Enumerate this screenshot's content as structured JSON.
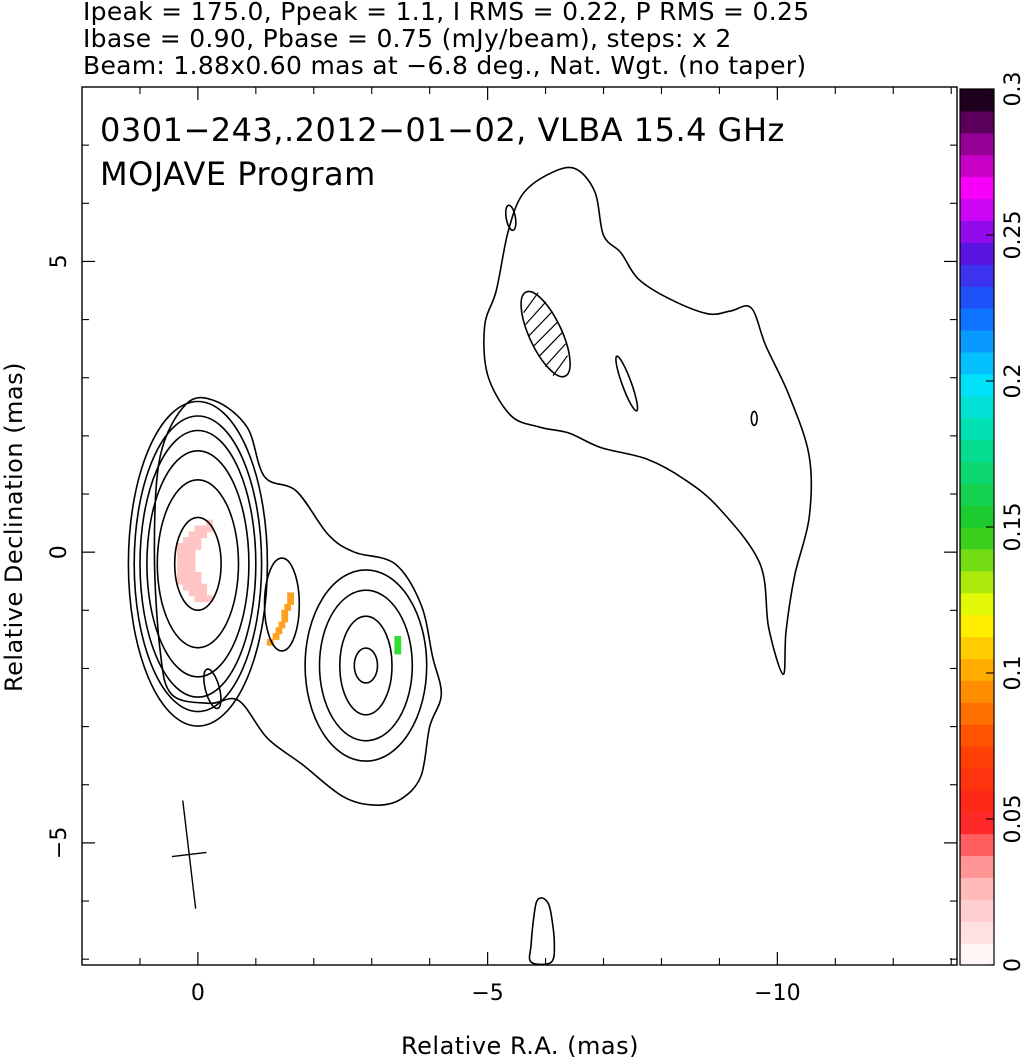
{
  "header": {
    "line1": "Ipeak = 175.0, Ppeak = 1.1, I RMS = 0.22, P RMS = 0.25",
    "line2": "Ibase = 0.90, Pbase = 0.75 (mJy/beam), steps: x 2",
    "line3": "Beam: 1.88x0.60 mas at −6.8 deg., Nat. Wgt. (no taper)"
  },
  "annotation": {
    "line1": "0301−243,.2012−01−02, VLBA 15.4 GHz",
    "line2": "MOJAVE Program"
  },
  "chart_data": {
    "type": "contour",
    "title": "0301−243,.2012−01−02, VLBA 15.4 GHz",
    "subtitle": "MOJAVE Program",
    "xlabel": "Relative R.A. (mas)",
    "ylabel": "Relative Declination (mas)",
    "xlim": [
      2.0,
      -13.1
    ],
    "ylim": [
      -7.1,
      8.0
    ],
    "x_ticks": [
      {
        "value": 0,
        "label": "0"
      },
      {
        "value": -5,
        "label": "−5"
      },
      {
        "value": -10,
        "label": "−10"
      }
    ],
    "x_minor": [
      1,
      -1,
      -2,
      -3,
      -4,
      -6,
      -7,
      -8,
      -9,
      -11,
      -12,
      -13
    ],
    "y_ticks": [
      {
        "value": 5,
        "label": "5"
      },
      {
        "value": 0,
        "label": "0"
      },
      {
        "value": -5,
        "label": "−5"
      }
    ],
    "y_minor": [
      7,
      6,
      4,
      3,
      2,
      1,
      -1,
      -2,
      -3,
      -4,
      -6,
      -7
    ],
    "intensity": {
      "peak_mJy_per_beam": 175.0,
      "rms": 0.22,
      "base_mJy_per_beam": 0.9,
      "contour_step_factor": 2
    },
    "polarization": {
      "peak_mJy_per_beam": 1.1,
      "rms": 0.25,
      "base_mJy_per_beam": 0.75
    },
    "beam": {
      "major_mas": 1.88,
      "minor_mas": 0.6,
      "pa_deg": -6.8,
      "center": [
        0.15,
        -5.2
      ],
      "weighting": "Nat. Wgt. (no taper)"
    },
    "components": [
      {
        "name": "core",
        "ra": 0.0,
        "dec": -0.2,
        "contours": [
          {
            "a": 0.4,
            "b": 0.8
          },
          {
            "a": 0.7,
            "b": 1.45
          },
          {
            "a": 0.88,
            "b": 1.95
          },
          {
            "a": 1.0,
            "b": 2.3
          },
          {
            "a": 1.1,
            "b": 2.55
          },
          {
            "a": 1.2,
            "b": 2.8
          }
        ]
      },
      {
        "name": "knot-1",
        "ra": -1.45,
        "dec": -0.9,
        "contours": [
          {
            "a": 0.3,
            "b": 0.8
          }
        ]
      },
      {
        "name": "knot-2",
        "ra": -2.9,
        "dec": -1.95,
        "contours": [
          {
            "a": 0.2,
            "b": 0.3
          },
          {
            "a": 0.45,
            "b": 0.85
          },
          {
            "a": 0.8,
            "b": 1.3
          },
          {
            "a": 1.05,
            "b": 1.65
          }
        ]
      }
    ],
    "envelopes": [
      {
        "name": "inner-jet-envelope",
        "points": [
          [
            0.2,
            2.55
          ],
          [
            -0.3,
            2.6
          ],
          [
            -0.85,
            2.15
          ],
          [
            -1.15,
            1.3
          ],
          [
            -1.7,
            1.05
          ],
          [
            -2.25,
            0.3
          ],
          [
            -2.7,
            0.0
          ],
          [
            -3.4,
            -0.2
          ],
          [
            -3.85,
            -0.9
          ],
          [
            -4.05,
            -1.8
          ],
          [
            -4.2,
            -2.45
          ],
          [
            -4.0,
            -3.0
          ],
          [
            -3.85,
            -3.85
          ],
          [
            -3.5,
            -4.25
          ],
          [
            -3.05,
            -4.35
          ],
          [
            -2.5,
            -4.2
          ],
          [
            -1.8,
            -3.65
          ],
          [
            -1.2,
            -3.2
          ],
          [
            -0.7,
            -2.55
          ],
          [
            -0.2,
            -2.6
          ],
          [
            0.45,
            -2.45
          ],
          [
            0.65,
            -1.7
          ],
          [
            0.75,
            0.0
          ],
          [
            0.65,
            1.65
          ]
        ]
      },
      {
        "name": "outer-jet-envelope",
        "points": [
          [
            -5.15,
            4.5
          ],
          [
            -5.35,
            5.5
          ],
          [
            -5.6,
            6.15
          ],
          [
            -6.05,
            6.5
          ],
          [
            -6.5,
            6.6
          ],
          [
            -6.85,
            6.2
          ],
          [
            -7.0,
            5.45
          ],
          [
            -7.3,
            5.15
          ],
          [
            -7.6,
            4.7
          ],
          [
            -8.15,
            4.35
          ],
          [
            -8.8,
            4.1
          ],
          [
            -9.2,
            4.15
          ],
          [
            -9.55,
            4.2
          ],
          [
            -9.8,
            3.55
          ],
          [
            -10.2,
            2.7
          ],
          [
            -10.55,
            1.65
          ],
          [
            -10.55,
            0.6
          ],
          [
            -10.3,
            -0.4
          ],
          [
            -10.15,
            -1.35
          ],
          [
            -10.1,
            -2.1
          ],
          [
            -9.85,
            -1.3
          ],
          [
            -9.7,
            -0.2
          ],
          [
            -9.0,
            0.75
          ],
          [
            -8.4,
            1.25
          ],
          [
            -7.75,
            1.6
          ],
          [
            -6.95,
            1.8
          ],
          [
            -6.4,
            2.05
          ],
          [
            -5.9,
            2.15
          ],
          [
            -5.4,
            2.35
          ],
          [
            -5.0,
            3.05
          ],
          [
            -4.95,
            3.9
          ]
        ]
      },
      {
        "name": "southern-lobe-contour",
        "points": [
          [
            -5.95,
            -5.95
          ],
          [
            -5.85,
            -6.0
          ],
          [
            -5.8,
            -6.25
          ],
          [
            -5.75,
            -6.75
          ],
          [
            -5.75,
            -7.05
          ],
          [
            -6.1,
            -7.05
          ],
          [
            -6.15,
            -6.7
          ],
          [
            -6.1,
            -6.25
          ],
          [
            -6.05,
            -6.05
          ]
        ]
      }
    ],
    "minor_contours": [
      {
        "ra": -0.25,
        "dec": -2.35,
        "a": 0.12,
        "b": 0.35,
        "angle": -15
      },
      {
        "ra": -5.4,
        "dec": 5.75,
        "a": 0.08,
        "b": 0.22,
        "angle": -10
      },
      {
        "ra": -7.4,
        "dec": 2.9,
        "a": 0.08,
        "b": 0.5,
        "angle": -20
      },
      {
        "ra": -9.6,
        "dec": 2.3,
        "a": 0.05,
        "b": 0.12,
        "angle": 0
      }
    ],
    "negative_contour": {
      "ra": -6.0,
      "dec": 3.75,
      "a": 0.28,
      "b": 0.8,
      "angle": -25
    },
    "polarization_fractions": [
      {
        "name": "core-polarization",
        "color": "#ffc4c4",
        "cells": [
          [
            -0.2,
            -0.8
          ],
          [
            -0.1,
            -0.8
          ],
          [
            0.0,
            -0.8
          ],
          [
            -0.1,
            -0.7
          ],
          [
            0.0,
            -0.7
          ],
          [
            0.1,
            -0.7
          ],
          [
            -0.1,
            -0.6
          ],
          [
            0.0,
            -0.6
          ],
          [
            0.1,
            -0.6
          ],
          [
            0.2,
            -0.6
          ],
          [
            0.0,
            -0.5
          ],
          [
            0.1,
            -0.5
          ],
          [
            0.2,
            -0.5
          ],
          [
            0.3,
            -0.5
          ],
          [
            0.0,
            -0.4
          ],
          [
            0.1,
            -0.4
          ],
          [
            0.2,
            -0.4
          ],
          [
            0.3,
            -0.4
          ],
          [
            0.1,
            -0.3
          ],
          [
            0.2,
            -0.3
          ],
          [
            0.3,
            -0.3
          ],
          [
            0.1,
            -0.2
          ],
          [
            0.2,
            -0.2
          ],
          [
            0.3,
            -0.2
          ],
          [
            0.1,
            -0.1
          ],
          [
            0.2,
            -0.1
          ],
          [
            0.3,
            -0.1
          ],
          [
            0.1,
            0.0
          ],
          [
            0.2,
            0.0
          ],
          [
            0.3,
            0.0
          ],
          [
            0.0,
            0.1
          ],
          [
            0.1,
            0.1
          ],
          [
            0.2,
            0.1
          ],
          [
            0.3,
            0.1
          ],
          [
            0.0,
            0.2
          ],
          [
            0.1,
            0.2
          ],
          [
            0.2,
            0.2
          ],
          [
            -0.1,
            0.3
          ],
          [
            0.0,
            0.3
          ],
          [
            0.1,
            0.3
          ],
          [
            -0.2,
            0.4
          ],
          [
            -0.1,
            0.4
          ],
          [
            0.0,
            0.4
          ],
          [
            -0.2,
            0.5
          ]
        ]
      },
      {
        "name": "knot-polarization",
        "color": "#ffa020",
        "cells": [
          [
            -1.25,
            -1.55
          ],
          [
            -1.35,
            -1.45
          ],
          [
            -1.4,
            -1.35
          ],
          [
            -1.45,
            -1.25
          ],
          [
            -1.5,
            -1.15
          ],
          [
            -1.5,
            -1.05
          ],
          [
            -1.55,
            -0.95
          ],
          [
            -1.6,
            -0.85
          ],
          [
            -1.6,
            -0.75
          ]
        ]
      },
      {
        "name": "outer-knot-polarization",
        "color": "#30e030",
        "cells": [
          [
            -3.45,
            -1.5
          ],
          [
            -3.45,
            -1.6
          ],
          [
            -3.45,
            -1.7
          ]
        ]
      }
    ],
    "colorbar": {
      "min": 0,
      "max": 0.3,
      "ticks": [
        "0",
        "0.05",
        "0.1",
        "0.15",
        "0.2",
        "0.25",
        "0.3"
      ],
      "stops": [
        {
          "v": 0.0,
          "c": "#ffffff"
        },
        {
          "v": 0.03,
          "c": "#ffb0b0"
        },
        {
          "v": 0.05,
          "c": "#ff2020"
        },
        {
          "v": 0.075,
          "c": "#ff4400"
        },
        {
          "v": 0.1,
          "c": "#ffa500"
        },
        {
          "v": 0.12,
          "c": "#ffff00"
        },
        {
          "v": 0.15,
          "c": "#20c820"
        },
        {
          "v": 0.18,
          "c": "#00e0a0"
        },
        {
          "v": 0.2,
          "c": "#00e0ff"
        },
        {
          "v": 0.225,
          "c": "#1060ff"
        },
        {
          "v": 0.245,
          "c": "#6010e0"
        },
        {
          "v": 0.265,
          "c": "#ff00ff"
        },
        {
          "v": 0.28,
          "c": "#a000a0"
        },
        {
          "v": 0.3,
          "c": "#000000"
        }
      ]
    }
  }
}
